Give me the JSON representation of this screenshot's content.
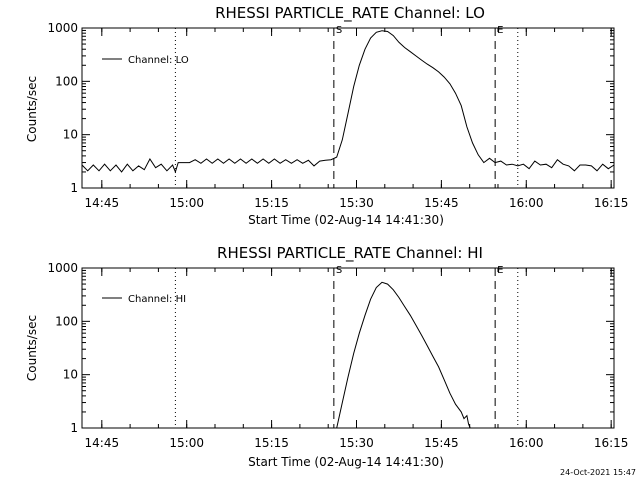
{
  "chart_data": [
    {
      "type": "line",
      "title": "RHESSI PARTICLE_RATE Channel: LO",
      "xlabel": "Start Time (02-Aug-14 14:41:30)",
      "ylabel": "Counts/sec",
      "yscale": "log",
      "ylim": [
        1,
        1000
      ],
      "yticks": [
        1,
        10,
        100,
        1000
      ],
      "ytick_labels": [
        "1",
        "10",
        "100",
        "1000"
      ],
      "xlim_min": [
        0,
        94
      ],
      "xticks_min": [
        3.5,
        18.5,
        33.5,
        48.5,
        63.5,
        78.5,
        93.5
      ],
      "xtick_labels": [
        "14:45",
        "15:00",
        "15:15",
        "15:30",
        "15:45",
        "16:00",
        "16:15"
      ],
      "legend": {
        "placement": "top-left",
        "entries": [
          "Channel: LO"
        ]
      },
      "markers": [
        {
          "label": "S",
          "x_min": 44.5,
          "style": "dashed"
        },
        {
          "label": "E",
          "x_min": 73.0,
          "style": "dashed"
        }
      ],
      "dotted_lines_min": [
        16.5,
        77.0,
        94.0
      ],
      "series": [
        {
          "name": "Channel: LO",
          "points_min_counts": [
            [
              0,
              2.7
            ],
            [
              1,
              2.1
            ],
            [
              2,
              2.7
            ],
            [
              3,
              2.1
            ],
            [
              4,
              2.8
            ],
            [
              5,
              2.1
            ],
            [
              6,
              2.7
            ],
            [
              7,
              2.0
            ],
            [
              8,
              2.8
            ],
            [
              9,
              2.1
            ],
            [
              10,
              2.6
            ],
            [
              11,
              2.2
            ],
            [
              12,
              3.5
            ],
            [
              13,
              2.4
            ],
            [
              14,
              2.8
            ],
            [
              15,
              2.1
            ],
            [
              16,
              2.7
            ],
            [
              16.5,
              2.0
            ],
            [
              17,
              3.0
            ],
            [
              18,
              3.0
            ],
            [
              19,
              3.0
            ],
            [
              20,
              3.4
            ],
            [
              21,
              2.9
            ],
            [
              22,
              3.5
            ],
            [
              23,
              2.9
            ],
            [
              24,
              3.5
            ],
            [
              25,
              2.9
            ],
            [
              26,
              3.5
            ],
            [
              27,
              2.9
            ],
            [
              28,
              3.5
            ],
            [
              29,
              2.9
            ],
            [
              30,
              3.5
            ],
            [
              31,
              2.9
            ],
            [
              32,
              3.5
            ],
            [
              33,
              2.9
            ],
            [
              34,
              3.5
            ],
            [
              35,
              2.9
            ],
            [
              36,
              3.4
            ],
            [
              37,
              2.9
            ],
            [
              38,
              3.4
            ],
            [
              39,
              2.9
            ],
            [
              40,
              3.3
            ],
            [
              41,
              2.6
            ],
            [
              42,
              3.2
            ],
            [
              43,
              3.3
            ],
            [
              44,
              3.4
            ],
            [
              45,
              3.8
            ],
            [
              46,
              8
            ],
            [
              47,
              25
            ],
            [
              48,
              80
            ],
            [
              49,
              200
            ],
            [
              50,
              400
            ],
            [
              51,
              650
            ],
            [
              52,
              830
            ],
            [
              53,
              890
            ],
            [
              54,
              860
            ],
            [
              55,
              720
            ],
            [
              56,
              540
            ],
            [
              57,
              430
            ],
            [
              58,
              360
            ],
            [
              59,
              300
            ],
            [
              60,
              250
            ],
            [
              61,
              210
            ],
            [
              62,
              180
            ],
            [
              63,
              150
            ],
            [
              64,
              120
            ],
            [
              65,
              90
            ],
            [
              66,
              60
            ],
            [
              67,
              35
            ],
            [
              68,
              14
            ],
            [
              69,
              7
            ],
            [
              70,
              4.2
            ],
            [
              71,
              3.0
            ],
            [
              72,
              3.6
            ],
            [
              73,
              3.0
            ],
            [
              74,
              3.2
            ],
            [
              75,
              2.7
            ],
            [
              76,
              2.8
            ],
            [
              77,
              2.6
            ],
            [
              78,
              2.8
            ],
            [
              79,
              2.3
            ],
            [
              80,
              3.2
            ],
            [
              81,
              2.7
            ],
            [
              82,
              2.8
            ],
            [
              83,
              2.4
            ],
            [
              84,
              3.4
            ],
            [
              85,
              2.8
            ],
            [
              86,
              2.6
            ],
            [
              87,
              2.1
            ],
            [
              88,
              2.7
            ],
            [
              89,
              2.7
            ],
            [
              90,
              2.6
            ],
            [
              91,
              2.1
            ],
            [
              92,
              2.8
            ],
            [
              93,
              2.3
            ],
            [
              94,
              2.7
            ]
          ]
        }
      ]
    },
    {
      "type": "line",
      "title": "RHESSI PARTICLE_RATE Channel: HI",
      "xlabel": "Start Time (02-Aug-14 14:41:30)",
      "ylabel": "Counts/sec",
      "yscale": "log",
      "ylim": [
        1,
        1000
      ],
      "yticks": [
        1,
        10,
        100,
        1000
      ],
      "ytick_labels": [
        "1",
        "10",
        "100",
        "1000"
      ],
      "xlim_min": [
        0,
        94
      ],
      "xticks_min": [
        3.5,
        18.5,
        33.5,
        48.5,
        63.5,
        78.5,
        93.5
      ],
      "xtick_labels": [
        "14:45",
        "15:00",
        "15:15",
        "15:30",
        "15:45",
        "16:00",
        "16:15"
      ],
      "legend": {
        "placement": "top-left",
        "entries": [
          "Channel: HI"
        ]
      },
      "markers": [
        {
          "label": "S",
          "x_min": 44.5,
          "style": "dashed"
        },
        {
          "label": "E",
          "x_min": 73.0,
          "style": "dashed"
        }
      ],
      "dotted_lines_min": [
        16.5,
        77.0,
        94.0
      ],
      "series": [
        {
          "name": "Channel: HI",
          "points_min_counts": [
            [
              45,
              1.0
            ],
            [
              46,
              3
            ],
            [
              47,
              9
            ],
            [
              48,
              25
            ],
            [
              49,
              60
            ],
            [
              50,
              130
            ],
            [
              51,
              260
            ],
            [
              52,
              430
            ],
            [
              53,
              540
            ],
            [
              54,
              500
            ],
            [
              55,
              390
            ],
            [
              56,
              280
            ],
            [
              57,
              190
            ],
            [
              58,
              130
            ],
            [
              59,
              85
            ],
            [
              60,
              55
            ],
            [
              61,
              35
            ],
            [
              62,
              22
            ],
            [
              63,
              14
            ],
            [
              64,
              8
            ],
            [
              65,
              4.5
            ],
            [
              66,
              2.8
            ],
            [
              67,
              2.0
            ],
            [
              67.5,
              1.5
            ],
            [
              68,
              1.7
            ],
            [
              68.3,
              1.2
            ],
            [
              68.6,
              1.0
            ]
          ]
        }
      ]
    }
  ],
  "footer": {
    "timestamp": "24-Oct-2021 15:47"
  }
}
